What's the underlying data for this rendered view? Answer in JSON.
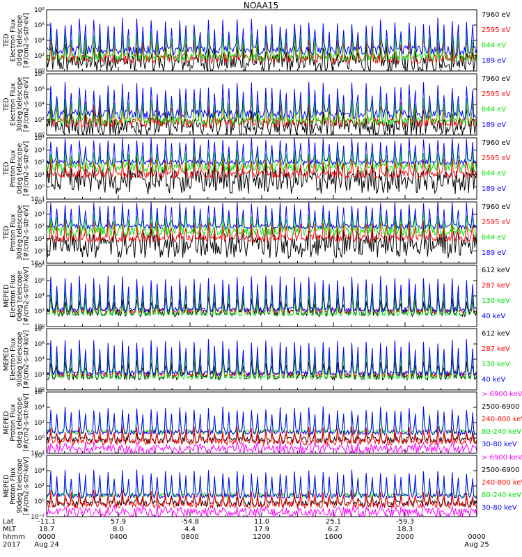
{
  "title": "NOAA15",
  "colors": {
    "black": "#000000",
    "red": "#ff0000",
    "green": "#00e000",
    "blue": "#0000ff",
    "magenta": "#ff00ff"
  },
  "chart_data": [
    {
      "type": "line",
      "instrument": "TED",
      "ylabel": [
        "TED",
        "Electron Flux",
        "0deg telescope",
        "[#/cm2-s-str-eV]"
      ],
      "ylog": [
        0,
        8
      ],
      "yticks": [
        "10⁰",
        "10²",
        "10⁴",
        "10⁶",
        "10⁸"
      ],
      "ytick_exp": [
        0,
        2,
        4,
        6,
        8
      ],
      "series": [
        {
          "name": "7960 eV",
          "color": "#000000"
        },
        {
          "name": "2595 eV",
          "color": "#ff0000"
        },
        {
          "name": "844 eV",
          "color": "#00e000"
        },
        {
          "name": "189 eV",
          "color": "#0000ff"
        }
      ]
    },
    {
      "type": "line",
      "instrument": "TED",
      "ylabel": [
        "TED",
        "Electron Flux",
        "30deg telescope",
        "[#/cm2-s-str-eV]"
      ],
      "ylog": [
        0,
        8
      ],
      "yticks": [
        "10⁰",
        "10²",
        "10⁴",
        "10⁶",
        "10⁸"
      ],
      "ytick_exp": [
        0,
        2,
        4,
        6,
        8
      ],
      "series": [
        {
          "name": "7960 eV",
          "color": "#000000"
        },
        {
          "name": "2595 eV",
          "color": "#ff0000"
        },
        {
          "name": "844 eV",
          "color": "#00e000"
        },
        {
          "name": "189 eV",
          "color": "#0000ff"
        }
      ]
    },
    {
      "type": "line",
      "instrument": "TED",
      "ylabel": [
        "TED",
        "Proton Flux",
        "0deg telescope",
        "[#/cm2-s-str-eV]"
      ],
      "ylog": [
        -1,
        4
      ],
      "yticks": [
        "10⁻¹",
        "10⁰",
        "10¹",
        "10²",
        "10³",
        "10⁴"
      ],
      "ytick_exp": [
        -1,
        0,
        1,
        2,
        3,
        4
      ],
      "series": [
        {
          "name": "7960 eV",
          "color": "#000000"
        },
        {
          "name": "2595 eV",
          "color": "#ff0000"
        },
        {
          "name": "844 eV",
          "color": "#00e000"
        },
        {
          "name": "189 eV",
          "color": "#0000ff"
        }
      ]
    },
    {
      "type": "line",
      "instrument": "TED",
      "ylabel": [
        "TED",
        "Proton Flux",
        "30deg telescope",
        "[#/cm2-s-str-eV]"
      ],
      "ylog": [
        -1,
        4
      ],
      "yticks": [
        "10⁻¹",
        "10⁰",
        "10¹",
        "10²",
        "10³",
        "10⁴"
      ],
      "ytick_exp": [
        -1,
        0,
        1,
        2,
        3,
        4
      ],
      "series": [
        {
          "name": "7960 eV",
          "color": "#000000"
        },
        {
          "name": "2595 eV",
          "color": "#ff0000"
        },
        {
          "name": "844 eV",
          "color": "#00e000"
        },
        {
          "name": "189 eV",
          "color": "#0000ff"
        }
      ]
    },
    {
      "type": "line",
      "instrument": "MEPED",
      "ylabel": [
        "MEPED",
        "Electron Flux",
        "0deg telescope",
        "[#/cm2-s-str-keV]"
      ],
      "ylog": [
        0,
        8
      ],
      "yticks": [
        "10⁰",
        "10²",
        "10⁴",
        "10⁶",
        "10⁸"
      ],
      "ytick_exp": [
        0,
        2,
        4,
        6,
        8
      ],
      "series": [
        {
          "name": "612 keV",
          "color": "#000000"
        },
        {
          "name": "287 keV",
          "color": "#ff0000"
        },
        {
          "name": "130 keV",
          "color": "#00e000"
        },
        {
          "name": "40 keV",
          "color": "#0000ff"
        }
      ]
    },
    {
      "type": "line",
      "instrument": "MEPED",
      "ylabel": [
        "MEPED",
        "Electron Flux",
        "90deg telescope",
        "[#/cm2-s-str-keV]"
      ],
      "ylog": [
        0,
        8
      ],
      "yticks": [
        "10⁰",
        "10²",
        "10⁴",
        "10⁶",
        "10⁸"
      ],
      "ytick_exp": [
        0,
        2,
        4,
        6,
        8
      ],
      "series": [
        {
          "name": "612 keV",
          "color": "#000000"
        },
        {
          "name": "287 keV",
          "color": "#ff0000"
        },
        {
          "name": "130 keV",
          "color": "#00e000"
        },
        {
          "name": "40 keV",
          "color": "#0000ff"
        }
      ]
    },
    {
      "type": "line",
      "instrument": "MEPED",
      "ylabel": [
        "MEPED",
        "Proton Flux",
        "0deg telescope",
        "[#/cm2-s-str-keV]"
      ],
      "ylog": [
        -2,
        6
      ],
      "yticks": [
        "10⁻²",
        "10⁰",
        "10²",
        "10⁴",
        "10⁶"
      ],
      "ytick_exp": [
        -2,
        0,
        2,
        4,
        6
      ],
      "series": [
        {
          "name": "> 6900 keV",
          "color": "#ff00ff"
        },
        {
          "name": "2500-6900",
          "color": "#000000"
        },
        {
          "name": "240-800 keV",
          "color": "#ff0000"
        },
        {
          "name": "80-240 keV",
          "color": "#00e000"
        },
        {
          "name": "30-80 keV",
          "color": "#0000ff"
        }
      ]
    },
    {
      "type": "line",
      "instrument": "MEPED",
      "ylabel": [
        "MEPED",
        "Proton Flux",
        "90deg telescope",
        "[#/cm2-s-str-keV]"
      ],
      "ylog": [
        -2,
        6
      ],
      "yticks": [
        "10⁻²",
        "10⁰",
        "10²",
        "10⁴",
        "10⁶"
      ],
      "ytick_exp": [
        -2,
        0,
        2,
        4,
        6
      ],
      "series": [
        {
          "name": "> 6900 keV",
          "color": "#ff00ff"
        },
        {
          "name": "2500-6900",
          "color": "#000000"
        },
        {
          "name": "240-800 keV",
          "color": "#ff0000"
        },
        {
          "name": "80-240 keV",
          "color": "#00e000"
        },
        {
          "name": "30-80 keV",
          "color": "#0000ff"
        }
      ]
    }
  ],
  "time_axis": {
    "row_labels": [
      "Lat",
      "MLT",
      "hhmm",
      "2017"
    ],
    "ticks": [
      {
        "lat": "-11.1",
        "mlt": "18.7",
        "hhmm": "0000",
        "date": "Aug 24"
      },
      {
        "lat": "57.9",
        "mlt": "8.0",
        "hhmm": "0400",
        "date": ""
      },
      {
        "lat": "-54.8",
        "mlt": "4.4",
        "hhmm": "0800",
        "date": ""
      },
      {
        "lat": "11.0",
        "mlt": "17.9",
        "hhmm": "1200",
        "date": ""
      },
      {
        "lat": "25.1",
        "mlt": "6.2",
        "hhmm": "1600",
        "date": ""
      },
      {
        "lat": "-59.3",
        "mlt": "18.3",
        "hhmm": "2000",
        "date": ""
      },
      {
        "lat": "",
        "mlt": "",
        "hhmm": "0000",
        "date": "Aug 25"
      }
    ]
  }
}
